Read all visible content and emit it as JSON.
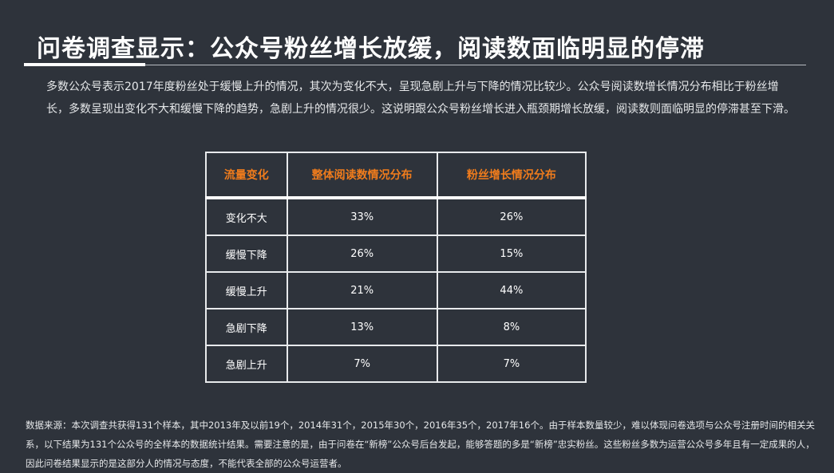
{
  "title": "问卷调查显示：公众号粉丝增长放缓，阅读数面临明显的停滞",
  "intro": "多数公众号表示2017年度粉丝处于缓慢上升的情况，其次为变化不大，呈现急剧上升与下降的情况比较少。公众号阅读数增长情况分布相比于粉丝增长，多数呈现出变化不大和缓慢下降的趋势，急剧上升的情况很少。这说明跟公众号粉丝增长进入瓶颈期增长放缓，阅读数则面临明显的停滞甚至下滑。",
  "table": {
    "headers": [
      "流量变化",
      "整体阅读数情况分布",
      "粉丝增长情况分布"
    ],
    "rows": [
      [
        "变化不大",
        "33%",
        "26%"
      ],
      [
        "缓慢下降",
        "26%",
        "15%"
      ],
      [
        "缓慢上升",
        "21%",
        "44%"
      ],
      [
        "急剧下降",
        "13%",
        "8%"
      ],
      [
        "急剧上升",
        "7%",
        "7%"
      ]
    ]
  },
  "footnote": "数据来源：本次调查共获得131个样本，其中2013年及以前19个，2014年31个，2015年30个，2016年35个，2017年16个。由于样本数量较少，难以体现问卷选项与公众号注册时间的相关关系，以下结果为131个公众号的全样本的数据统计结果。需要注意的是，由于问卷在“新榜”公众号后台发起，能够答题的多是“新榜”忠实粉丝。这些粉丝多数为运营公众号多年且有一定成果的人，因此问卷结果显示的是这部分人的情况与态度，不能代表全部的公众号运营者。",
  "colors": {
    "background": "#2e333b",
    "header_text": "#f07c1c",
    "text": "#ffffff"
  }
}
